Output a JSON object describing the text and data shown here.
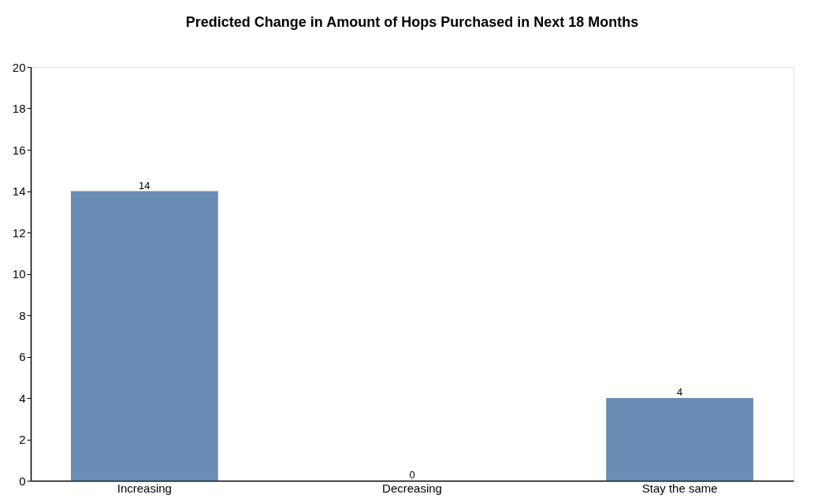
{
  "chart_data": {
    "type": "bar",
    "title": "Predicted Change in Amount of Hops Purchased in Next 18 Months",
    "categories": [
      "Increasing",
      "Decreasing",
      "Stay the same"
    ],
    "series": [
      {
        "color": "#6a8db5",
        "values": [
          14,
          0,
          4
        ]
      }
    ],
    "ylim": [
      0,
      20
    ],
    "yticks": [
      0,
      2,
      4,
      6,
      8,
      10,
      12,
      14,
      16,
      18,
      20
    ],
    "grid": false,
    "data_labels": true
  }
}
